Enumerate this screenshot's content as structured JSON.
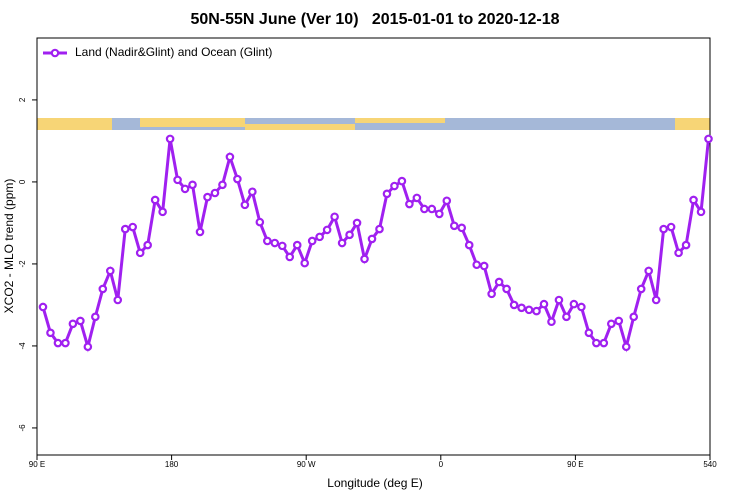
{
  "chart_data": {
    "type": "line",
    "title": "50N-55N June (Ver 10)   2015-01-01 to 2020-12-18",
    "xlabel": "Longitude (deg E)",
    "ylabel": "XCO2 - MLO trend (ppm)",
    "x": [
      94,
      99,
      104,
      109,
      114,
      119,
      124,
      129,
      134,
      139,
      144,
      149,
      154,
      159,
      164,
      169,
      174,
      179,
      184,
      189,
      194,
      199,
      204,
      209,
      214,
      219,
      224,
      229,
      234,
      239,
      244,
      249,
      254,
      259,
      264,
      269,
      274,
      279,
      284,
      289,
      294,
      299,
      304,
      309,
      314,
      319,
      324,
      329,
      334,
      339,
      344,
      349,
      354,
      359,
      364,
      369,
      374,
      379,
      384,
      389,
      394,
      399,
      404,
      409,
      414,
      419,
      424,
      429,
      434,
      439,
      444,
      449,
      454,
      459,
      464,
      469,
      474,
      479,
      484,
      489,
      494,
      499,
      504,
      509,
      514,
      519,
      524,
      529,
      534,
      539
    ],
    "series": [
      {
        "name": "Land (Nadir&Glint) and Ocean (Glint)",
        "color": "#a020f0",
        "values": [
          -3.05,
          -3.68,
          -3.93,
          -3.93,
          -3.46,
          -3.39,
          -4.02,
          -3.29,
          -2.61,
          -2.17,
          -2.88,
          -1.15,
          -1.1,
          -1.73,
          -1.54,
          -0.44,
          -0.73,
          1.05,
          0.05,
          -0.17,
          -0.07,
          -1.22,
          -0.37,
          -0.27,
          -0.07,
          0.61,
          0.07,
          -0.56,
          -0.24,
          -0.98,
          -1.44,
          -1.49,
          -1.56,
          -1.83,
          -1.54,
          -1.98,
          -1.44,
          -1.34,
          -1.17,
          -0.85,
          -1.49,
          -1.29,
          -1.0,
          -1.88,
          -1.39,
          -1.15,
          -0.29,
          -0.1,
          0.02,
          -0.54,
          -0.39,
          -0.66,
          -0.66,
          -0.78,
          -0.46,
          -1.07,
          -1.12,
          -1.54,
          -2.02,
          -2.05,
          -2.73,
          -2.44,
          -2.61,
          -3.0,
          -3.07,
          -3.12,
          -3.15,
          -2.98,
          -3.41,
          -2.88,
          -3.29,
          -2.98,
          -3.05,
          -3.68,
          -3.93,
          -3.93,
          -3.46,
          -3.39,
          -4.02,
          -3.29,
          -2.61,
          -2.17,
          -2.88,
          -1.15,
          -1.1,
          -1.73,
          -1.54,
          -0.44,
          -0.73,
          1.05
        ]
      }
    ],
    "xlim": [
      90,
      540
    ],
    "xticks": [
      {
        "value": 90,
        "label": "90 E"
      },
      180,
      {
        "value": 270,
        "label": "90 W"
      },
      {
        "value": 360,
        "label": "0"
      },
      {
        "value": 450,
        "label": "90 E"
      },
      540
    ],
    "ylim": [
      -6.66,
      3.51
    ],
    "yticks": [
      2,
      0,
      -2,
      -4,
      -6
    ],
    "legend": "top-left"
  }
}
